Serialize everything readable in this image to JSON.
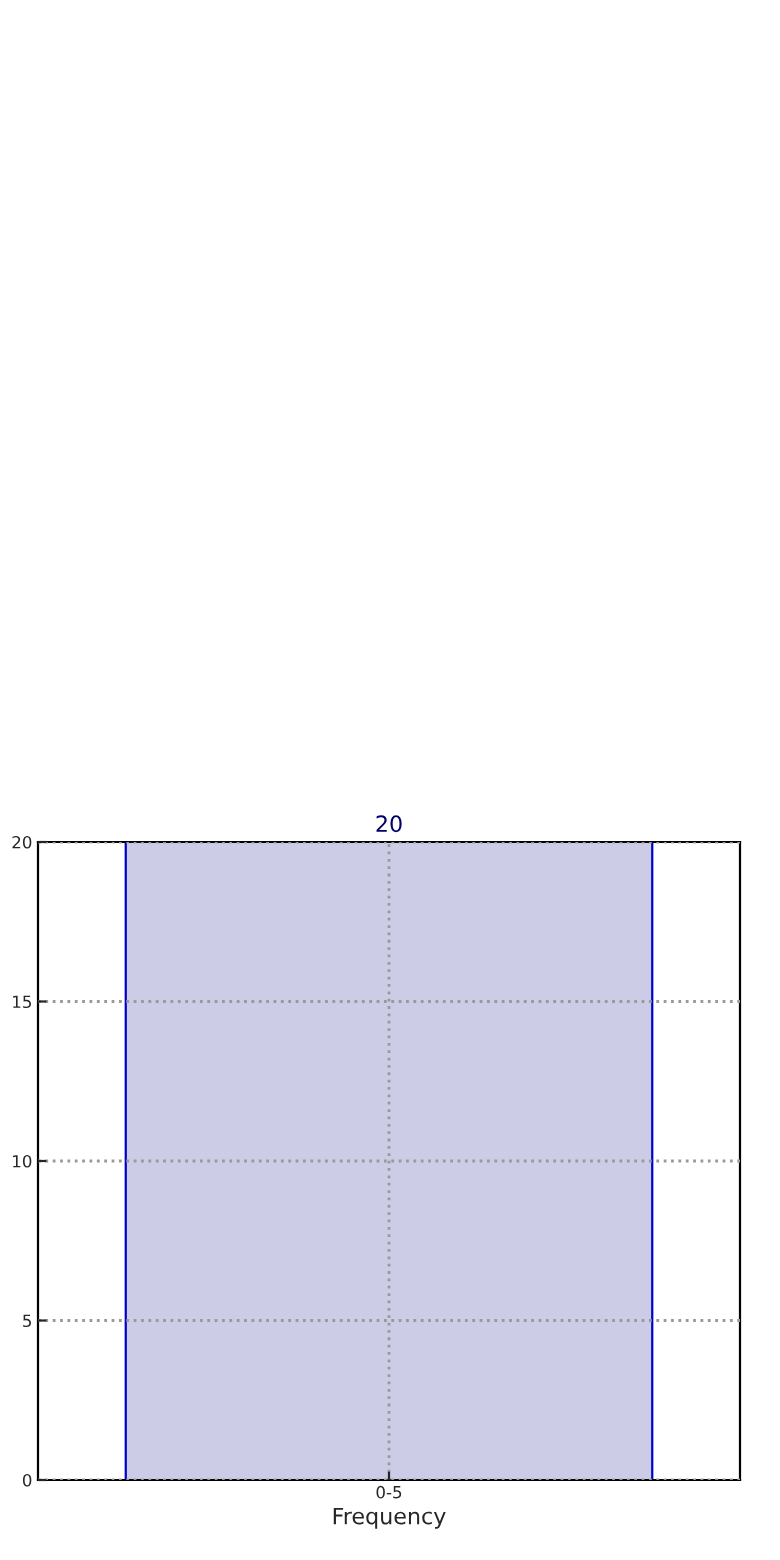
{
  "chart_data": {
    "type": "bar",
    "xlabel": "Frequency",
    "categories": [
      "0-5"
    ],
    "values": [
      20
    ],
    "color": "#ccccE6",
    "ylim": [
      0,
      20
    ],
    "yticks": [
      0,
      5,
      10,
      15,
      20
    ],
    "grid": true,
    "data_labels": true
  }
}
